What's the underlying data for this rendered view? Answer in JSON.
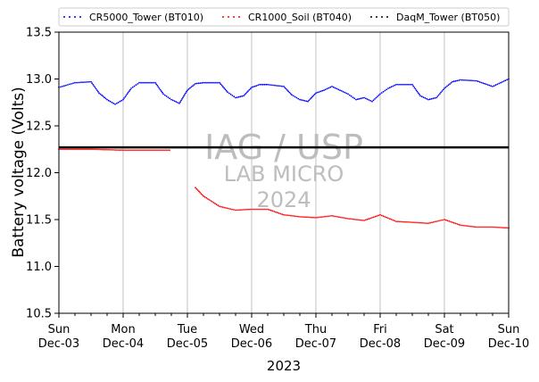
{
  "chart_data": {
    "type": "line",
    "title": "",
    "xlabel": "2023",
    "ylabel": "Battery voltage (Volts)",
    "ylim": [
      10.5,
      13.5
    ],
    "yticks": [
      "10.5",
      "11.0",
      "11.5",
      "12.0",
      "12.5",
      "13.0",
      "13.5"
    ],
    "xlim": [
      "2023-12-03",
      "2023-12-10"
    ],
    "xticks": [
      {
        "day": "Sun",
        "date": "Dec-03"
      },
      {
        "day": "Mon",
        "date": "Dec-04"
      },
      {
        "day": "Tue",
        "date": "Dec-05"
      },
      {
        "day": "Wed",
        "date": "Dec-06"
      },
      {
        "day": "Thu",
        "date": "Dec-07"
      },
      {
        "day": "Fri",
        "date": "Dec-08"
      },
      {
        "day": "Sat",
        "date": "Dec-09"
      },
      {
        "day": "Sun",
        "date": "Dec-10"
      }
    ],
    "grid": "vertical",
    "legend_position": "top",
    "reference_line": {
      "y": 12.27,
      "color": "#000000"
    },
    "series": [
      {
        "name": "CR5000_Tower (BT010)",
        "color": "#0000ff",
        "x": [
          "2023-12-03 00:00",
          "2023-12-03 06:00",
          "2023-12-03 12:00",
          "2023-12-03 15:00",
          "2023-12-03 18:00",
          "2023-12-03 21:00",
          "2023-12-04 00:00",
          "2023-12-04 03:00",
          "2023-12-04 06:00",
          "2023-12-04 12:00",
          "2023-12-04 15:00",
          "2023-12-04 18:00",
          "2023-12-04 21:00",
          "2023-12-05 00:00",
          "2023-12-05 03:00",
          "2023-12-05 06:00",
          "2023-12-05 12:00",
          "2023-12-05 15:00",
          "2023-12-05 18:00",
          "2023-12-05 21:00",
          "2023-12-06 00:00",
          "2023-12-06 03:00",
          "2023-12-06 06:00",
          "2023-12-06 12:00",
          "2023-12-06 15:00",
          "2023-12-06 18:00",
          "2023-12-06 21:00",
          "2023-12-07 00:00",
          "2023-12-07 03:00",
          "2023-12-07 06:00",
          "2023-12-07 12:00",
          "2023-12-07 15:00",
          "2023-12-07 18:00",
          "2023-12-07 21:00",
          "2023-12-08 00:00",
          "2023-12-08 03:00",
          "2023-12-08 06:00",
          "2023-12-08 12:00",
          "2023-12-08 15:00",
          "2023-12-08 18:00",
          "2023-12-08 21:00",
          "2023-12-09 00:00",
          "2023-12-09 03:00",
          "2023-12-09 06:00",
          "2023-12-09 12:00",
          "2023-12-09 15:00",
          "2023-12-09 18:00",
          "2023-12-09 21:00",
          "2023-12-10 00:00"
        ],
        "y": [
          12.91,
          12.96,
          12.97,
          12.85,
          12.78,
          12.73,
          12.78,
          12.9,
          12.96,
          12.96,
          12.84,
          12.78,
          12.74,
          12.88,
          12.95,
          12.96,
          12.96,
          12.86,
          12.8,
          12.82,
          12.91,
          12.94,
          12.94,
          12.92,
          12.83,
          12.78,
          12.76,
          12.85,
          12.88,
          12.92,
          12.84,
          12.78,
          12.8,
          12.76,
          12.84,
          12.9,
          12.94,
          12.94,
          12.82,
          12.78,
          12.8,
          12.9,
          12.97,
          12.99,
          12.98,
          12.95,
          12.92,
          12.96,
          13.0
        ]
      },
      {
        "name": "CR1000_Soil (BT040)",
        "color": "#ff0000",
        "x": [
          "2023-12-03 00:00",
          "2023-12-03 12:00",
          "2023-12-04 00:00",
          "2023-12-04 12:00",
          "2023-12-04 18:00",
          "2023-12-05 00:00",
          "2023-12-05 03:00",
          "2023-12-05 06:00",
          "2023-12-05 12:00",
          "2023-12-05 18:00",
          "2023-12-06 00:00",
          "2023-12-06 06:00",
          "2023-12-06 12:00",
          "2023-12-06 18:00",
          "2023-12-07 00:00",
          "2023-12-07 06:00",
          "2023-12-07 12:00",
          "2023-12-07 18:00",
          "2023-12-08 00:00",
          "2023-12-08 06:00",
          "2023-12-08 12:00",
          "2023-12-08 18:00",
          "2023-12-09 00:00",
          "2023-12-09 06:00",
          "2023-12-09 12:00",
          "2023-12-09 18:00",
          "2023-12-10 00:00"
        ],
        "y": [
          12.25,
          12.25,
          12.24,
          12.24,
          12.24,
          null,
          11.84,
          11.75,
          11.64,
          11.6,
          11.61,
          11.61,
          11.55,
          11.53,
          11.52,
          11.54,
          11.51,
          11.49,
          11.55,
          11.48,
          11.47,
          11.46,
          11.5,
          11.44,
          11.42,
          11.42,
          11.41
        ]
      },
      {
        "name": "DaqM_Tower (BT050)",
        "color": "#000000",
        "x": [],
        "y": []
      }
    ]
  },
  "watermark": {
    "line1": "IAG / USP",
    "line2": "LAB MICRO",
    "line3": "2024"
  }
}
